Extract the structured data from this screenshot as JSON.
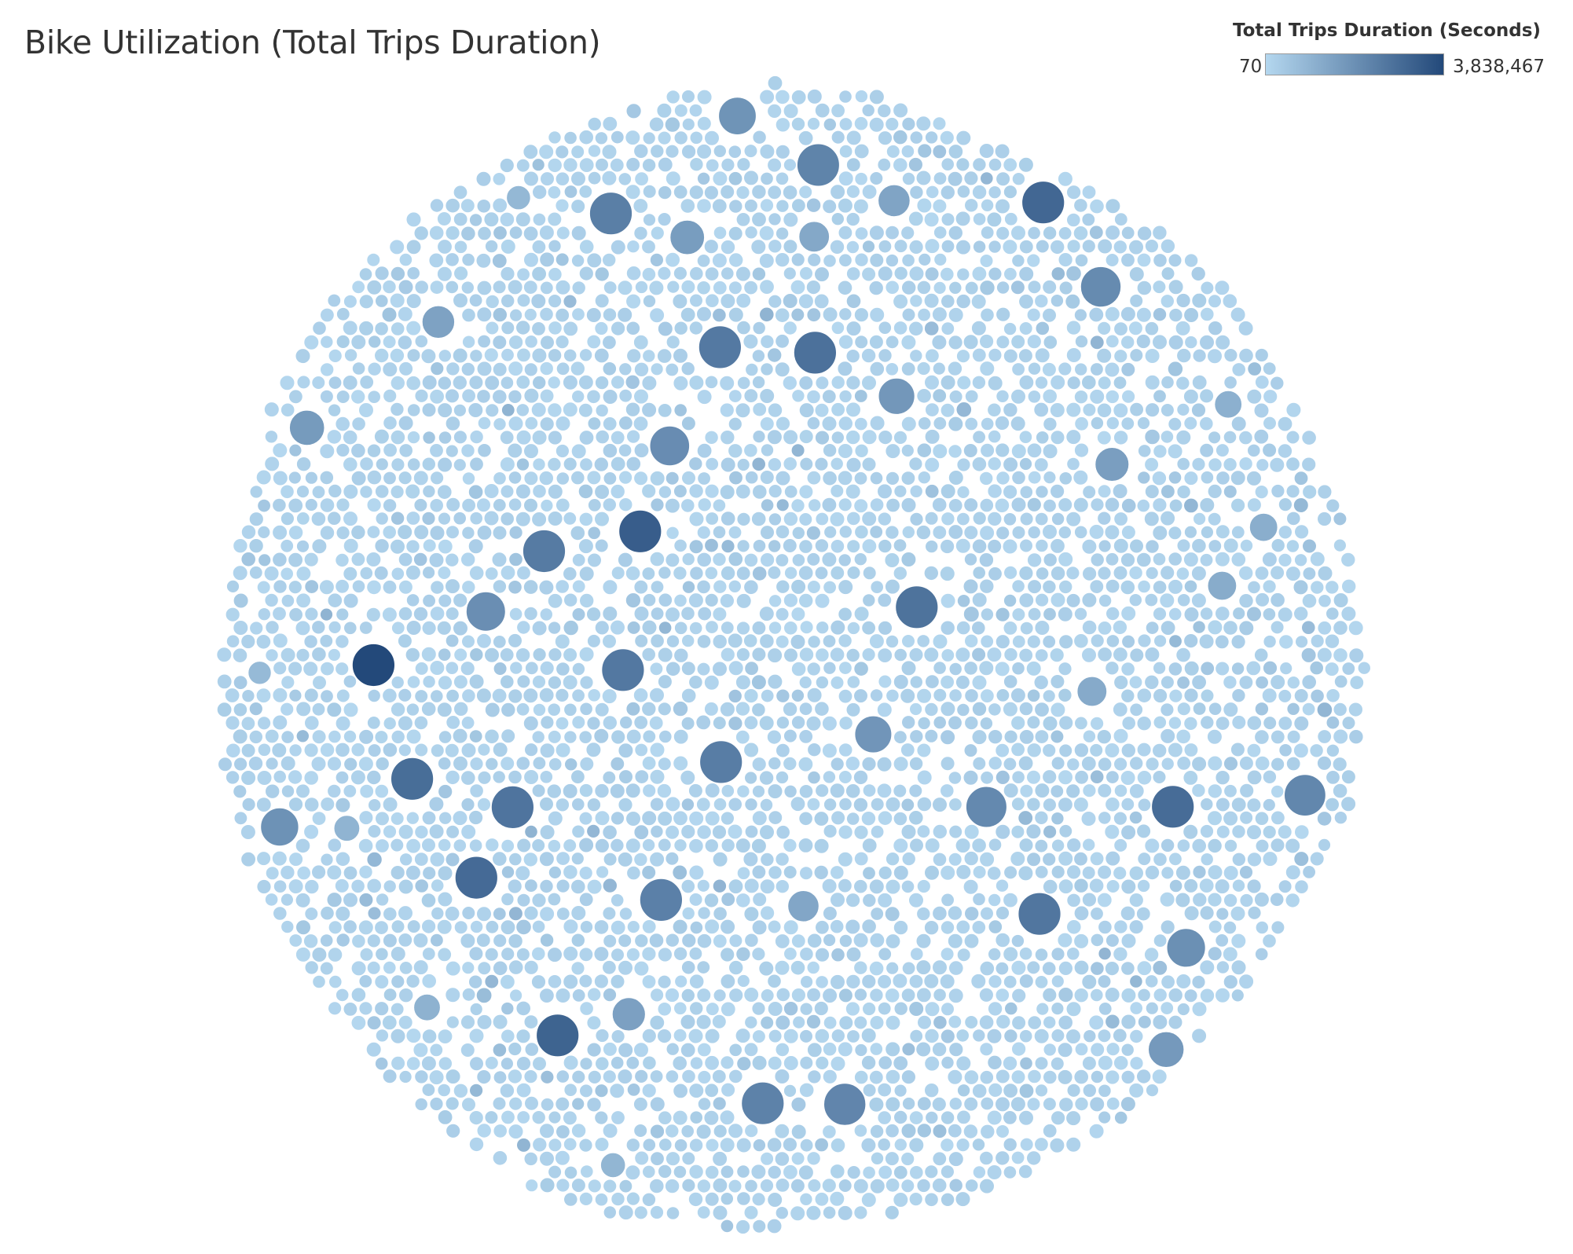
{
  "page": {
    "title": "Bike Utilization (Total Trips Duration)"
  },
  "legend": {
    "title": "Total Trips Duration (Seconds)",
    "min_label": "70",
    "max_label": "3,838,467",
    "color_low": "#b4d7ef",
    "color_high": "#23497a",
    "position": "top-right"
  },
  "chart_data": {
    "type": "packed-bubble",
    "title": "Bike Utilization (Total Trips Duration)",
    "measure": "Total Trips Duration (Seconds)",
    "color_range": [
      70,
      3838467
    ],
    "bubble_count_approx": 5000,
    "values": [
      3838467,
      3200000,
      3000000,
      2900000,
      2800000,
      2750000,
      2700000,
      2600000,
      2550000,
      2500000,
      2450000,
      2400000,
      2350000,
      2300000,
      2250000,
      2200000,
      2150000,
      2100000,
      2050000,
      2000000,
      1950000,
      1900000,
      1850000,
      1800000,
      1750000,
      1700000,
      1650000,
      1600000,
      1550000,
      1500000,
      1450000,
      1400000,
      1350000,
      1300000,
      1250000,
      1200000,
      1150000,
      1100000,
      1050000,
      1000000,
      950000,
      900000,
      850000,
      800000,
      750000,
      700000,
      650000,
      600000
    ],
    "base_value_range": [
      70,
      400000
    ]
  }
}
